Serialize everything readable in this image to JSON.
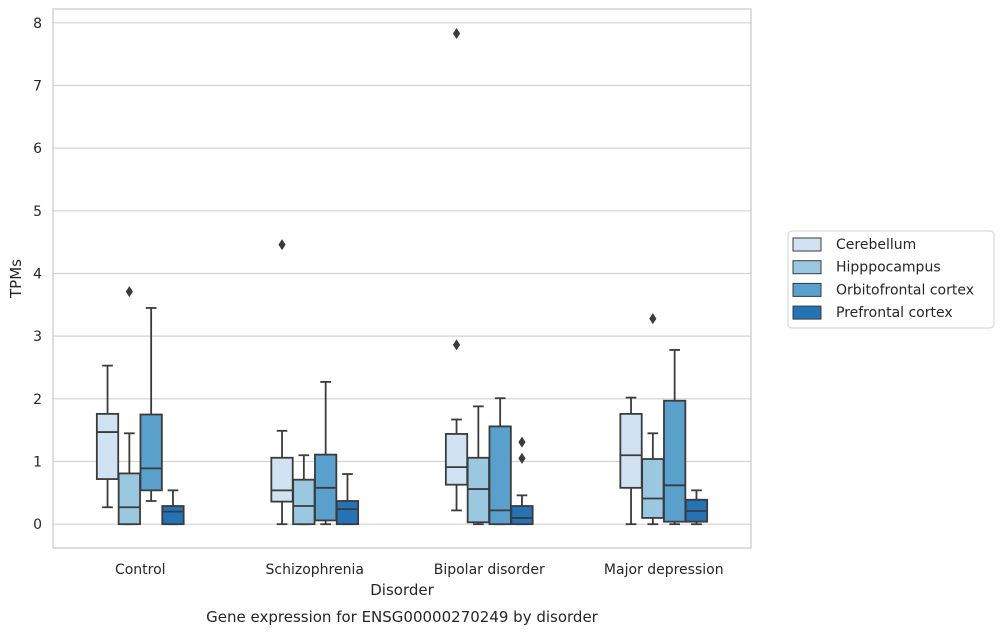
{
  "chart_data": {
    "type": "box",
    "title": "Gene expression for ENSG00000270249 by disorder",
    "xlabel": "Disorder",
    "ylabel": "TPMs",
    "ylim": [
      -0.38,
      8.22
    ],
    "yticks": [
      0,
      1,
      2,
      3,
      4,
      5,
      6,
      7,
      8
    ],
    "grid": true,
    "legend_position": "right",
    "categories": [
      "Control",
      "Schizophrenia",
      "Bipolar disorder",
      "Major depression"
    ],
    "series": [
      {
        "name": "Cerebellum",
        "color": "#d1e2f2",
        "boxes": [
          {
            "whisker_low": 0.27,
            "q1": 0.72,
            "median": 1.47,
            "q3": 1.76,
            "whisker_high": 2.53,
            "outliers": []
          },
          {
            "whisker_low": 0.0,
            "q1": 0.36,
            "median": 0.54,
            "q3": 1.06,
            "whisker_high": 1.49,
            "outliers": [
              4.46
            ]
          },
          {
            "whisker_low": 0.22,
            "q1": 0.63,
            "median": 0.91,
            "q3": 1.44,
            "whisker_high": 1.67,
            "outliers": [
              2.86,
              7.83
            ]
          },
          {
            "whisker_low": 0.0,
            "q1": 0.58,
            "median": 1.1,
            "q3": 1.76,
            "whisker_high": 2.02,
            "outliers": []
          }
        ]
      },
      {
        "name": "Hipppocampus",
        "color": "#9ac8e0",
        "boxes": [
          {
            "whisker_low": 0.0,
            "q1": 0.0,
            "median": 0.27,
            "q3": 0.81,
            "whisker_high": 1.45,
            "outliers": [
              3.71
            ]
          },
          {
            "whisker_low": 0.0,
            "q1": 0.0,
            "median": 0.29,
            "q3": 0.71,
            "whisker_high": 1.1,
            "outliers": []
          },
          {
            "whisker_low": 0.0,
            "q1": 0.03,
            "median": 0.56,
            "q3": 1.06,
            "whisker_high": 1.88,
            "outliers": []
          },
          {
            "whisker_low": 0.0,
            "q1": 0.1,
            "median": 0.41,
            "q3": 1.04,
            "whisker_high": 1.45,
            "outliers": [
              3.28
            ]
          }
        ]
      },
      {
        "name": "Orbitofrontal cortex",
        "color": "#5aa0cd",
        "boxes": [
          {
            "whisker_low": 0.37,
            "q1": 0.54,
            "median": 0.89,
            "q3": 1.75,
            "whisker_high": 3.45,
            "outliers": []
          },
          {
            "whisker_low": 0.0,
            "q1": 0.06,
            "median": 0.58,
            "q3": 1.11,
            "whisker_high": 2.27,
            "outliers": []
          },
          {
            "whisker_low": 0.0,
            "q1": 0.0,
            "median": 0.22,
            "q3": 1.56,
            "whisker_high": 2.01,
            "outliers": []
          },
          {
            "whisker_low": 0.0,
            "q1": 0.04,
            "median": 0.62,
            "q3": 1.97,
            "whisker_high": 2.78,
            "outliers": []
          }
        ]
      },
      {
        "name": "Prefrontal cortex",
        "color": "#2373b6",
        "boxes": [
          {
            "whisker_low": 0.0,
            "q1": 0.0,
            "median": 0.2,
            "q3": 0.29,
            "whisker_high": 0.54,
            "outliers": []
          },
          {
            "whisker_low": 0.0,
            "q1": 0.0,
            "median": 0.24,
            "q3": 0.37,
            "whisker_high": 0.8,
            "outliers": []
          },
          {
            "whisker_low": 0.0,
            "q1": 0.0,
            "median": 0.1,
            "q3": 0.29,
            "whisker_high": 0.46,
            "outliers": [
              1.05,
              1.31
            ]
          },
          {
            "whisker_low": 0.0,
            "q1": 0.04,
            "median": 0.21,
            "q3": 0.39,
            "whisker_high": 0.54,
            "outliers": []
          }
        ]
      }
    ]
  }
}
